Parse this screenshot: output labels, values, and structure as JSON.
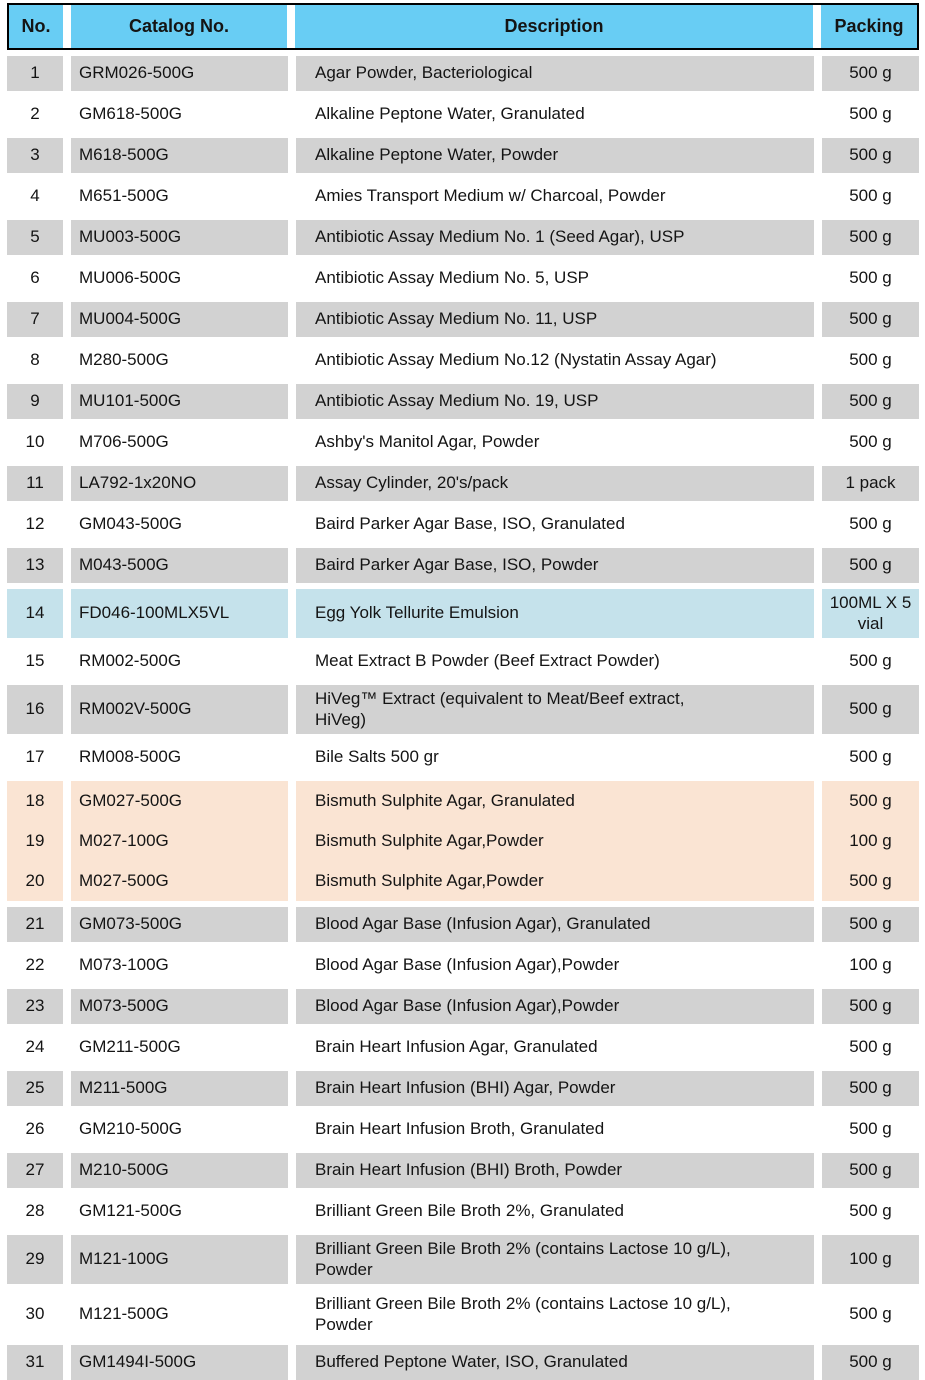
{
  "header": {
    "no": "No.",
    "catalog": "Catalog No.",
    "description": "Description",
    "packing": "Packing"
  },
  "colors": {
    "page_bg": "#FFFFFF",
    "text": "#141414",
    "header_bg": "#68CDF4",
    "header_border": "#000000",
    "row_gray": "#D2D2D2",
    "row_white": "#FFFFFF",
    "highlight_blue": "#C5E2EB",
    "highlight_peach": "#FAE4D3"
  },
  "rows": [
    {
      "no": "1",
      "catalog": "GRM026-500G",
      "description": "Agar Powder, Bacteriological",
      "packing": "500 g",
      "variant": "gray"
    },
    {
      "no": "2",
      "catalog": "GM618-500G",
      "description": "Alkaline Peptone Water, Granulated",
      "packing": "500 g",
      "variant": "white"
    },
    {
      "no": "3",
      "catalog": "M618-500G",
      "description": "Alkaline Peptone Water, Powder",
      "packing": "500 g",
      "variant": "gray"
    },
    {
      "no": "4",
      "catalog": "M651-500G",
      "description": "Amies Transport Medium w/ Charcoal, Powder",
      "packing": "500 g",
      "variant": "white"
    },
    {
      "no": "5",
      "catalog": "MU003-500G",
      "description": "Antibiotic Assay Medium No. 1 (Seed Agar), USP",
      "packing": "500 g",
      "variant": "gray"
    },
    {
      "no": "6",
      "catalog": "MU006-500G",
      "description": "Antibiotic Assay Medium No. 5, USP",
      "packing": "500 g",
      "variant": "white"
    },
    {
      "no": "7",
      "catalog": "MU004-500G",
      "description": "Antibiotic Assay Medium No. 11, USP",
      "packing": "500 g",
      "variant": "gray"
    },
    {
      "no": "8",
      "catalog": "M280-500G",
      "description": "Antibiotic Assay Medium No.12 (Nystatin Assay Agar)",
      "packing": "500 g",
      "variant": "white"
    },
    {
      "no": "9",
      "catalog": "MU101-500G",
      "description": "Antibiotic Assay Medium No. 19, USP",
      "packing": "500 g",
      "variant": "gray"
    },
    {
      "no": "10",
      "catalog": "M706-500G",
      "description": "Ashby's Manitol Agar, Powder",
      "packing": "500 g",
      "variant": "white"
    },
    {
      "no": "11",
      "catalog": "LA792-1x20NO",
      "description": "Assay Cylinder, 20's/pack",
      "packing": "1 pack",
      "variant": "gray"
    },
    {
      "no": "12",
      "catalog": "GM043-500G",
      "description": "Baird Parker Agar Base, ISO, Granulated",
      "packing": "500 g",
      "variant": "white"
    },
    {
      "no": "13",
      "catalog": "M043-500G",
      "description": "Baird Parker Agar Base, ISO, Powder",
      "packing": "500 g",
      "variant": "gray"
    },
    {
      "no": "14",
      "catalog": "FD046-100MLX5VL",
      "description": "Egg Yolk Tellurite Emulsion",
      "packing": "100ML X 5 vial",
      "variant": "blue",
      "tall": true
    },
    {
      "no": "15",
      "catalog": "RM002-500G",
      "description": "Meat Extract B Powder (Beef Extract Powder)",
      "packing": "500 g",
      "variant": "white"
    },
    {
      "no": "16",
      "catalog": "RM002V-500G",
      "description": "HiVeg™ Extract (equivalent to Meat/Beef extract,\nHiVeg)",
      "packing": "500 g",
      "variant": "gray",
      "tall": true
    },
    {
      "no": "17",
      "catalog": "RM008-500G",
      "description": "Bile Salts 500 gr",
      "packing": "500 g",
      "variant": "white"
    },
    {
      "no": "18",
      "catalog": "GM027-500G",
      "description": "Bismuth Sulphite Agar, Granulated",
      "packing": "500 g",
      "variant": "peach"
    },
    {
      "no": "19",
      "catalog": "M027-100G",
      "description": "Bismuth Sulphite Agar,Powder",
      "packing": "100 g",
      "variant": "peach"
    },
    {
      "no": "20",
      "catalog": "M027-500G",
      "description": "Bismuth Sulphite Agar,Powder",
      "packing": "500 g",
      "variant": "peach"
    },
    {
      "no": "21",
      "catalog": "GM073-500G",
      "description": "Blood Agar Base (Infusion Agar), Granulated",
      "packing": "500 g",
      "variant": "gray"
    },
    {
      "no": "22",
      "catalog": "M073-100G",
      "description": "Blood Agar Base (Infusion Agar),Powder",
      "packing": "100 g",
      "variant": "white"
    },
    {
      "no": "23",
      "catalog": "M073-500G",
      "description": "Blood Agar Base (Infusion Agar),Powder",
      "packing": "500 g",
      "variant": "gray"
    },
    {
      "no": "24",
      "catalog": "GM211-500G",
      "description": "Brain Heart Infusion Agar, Granulated",
      "packing": "500 g",
      "variant": "white"
    },
    {
      "no": "25",
      "catalog": "M211-500G",
      "description": "Brain Heart Infusion (BHI) Agar, Powder",
      "packing": "500 g",
      "variant": "gray"
    },
    {
      "no": "26",
      "catalog": "GM210-500G",
      "description": "Brain Heart Infusion Broth, Granulated",
      "packing": "500 g",
      "variant": "white"
    },
    {
      "no": "27",
      "catalog": "M210-500G",
      "description": "Brain Heart Infusion (BHI) Broth, Powder",
      "packing": "500 g",
      "variant": "gray"
    },
    {
      "no": "28",
      "catalog": "GM121-500G",
      "description": "Brilliant Green Bile Broth 2%, Granulated",
      "packing": "500 g",
      "variant": "white"
    },
    {
      "no": "29",
      "catalog": "M121-100G",
      "description": "Brilliant Green Bile Broth 2% (contains Lactose 10 g/L),\nPowder",
      "packing": "100 g",
      "variant": "gray",
      "tall": true
    },
    {
      "no": "30",
      "catalog": "M121-500G",
      "description": "Brilliant Green Bile Broth 2% (contains Lactose 10 g/L),\nPowder",
      "packing": "500 g",
      "variant": "white",
      "tall": true
    },
    {
      "no": "31",
      "catalog": "GM1494I-500G",
      "description": "Buffered Peptone Water, ISO, Granulated",
      "packing": "500 g",
      "variant": "gray"
    }
  ]
}
